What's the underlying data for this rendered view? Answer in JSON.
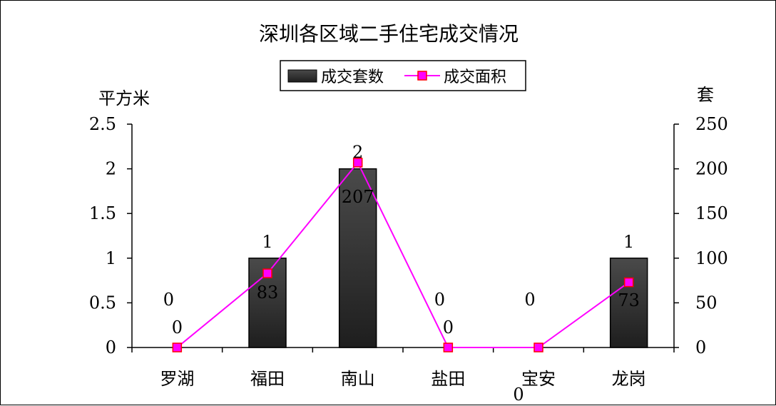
{
  "chart_data": {
    "type": "bar+line",
    "title": "深圳各区域二手住宅成交情况",
    "categories": [
      "罗湖",
      "福田",
      "南山",
      "盐田",
      "宝安",
      "龙岗"
    ],
    "left_axis": {
      "unit": "平方米",
      "ylim": [
        0,
        2.5
      ],
      "ticks": [
        "0",
        "0.5",
        "1",
        "1.5",
        "2",
        "2.5"
      ]
    },
    "right_axis": {
      "unit": "套",
      "ylim": [
        0,
        250
      ],
      "ticks": [
        "0",
        "50",
        "100",
        "150",
        "200",
        "250"
      ]
    },
    "legend_position": "top-center",
    "series": [
      {
        "name": "成交套数",
        "kind": "bar",
        "axis": "left",
        "color": "#333333",
        "values": [
          0,
          1,
          2,
          0,
          0,
          1
        ],
        "labels": [
          "0",
          "1",
          "2",
          "0",
          "0",
          "1"
        ]
      },
      {
        "name": "成交面积",
        "kind": "line",
        "axis": "right",
        "color": "#ff00ff",
        "marker_color": "#ff0000",
        "values": [
          0,
          83,
          207,
          0,
          0,
          73
        ],
        "labels": [
          "0",
          "83",
          "207",
          "0",
          "0",
          "73"
        ]
      }
    ]
  }
}
